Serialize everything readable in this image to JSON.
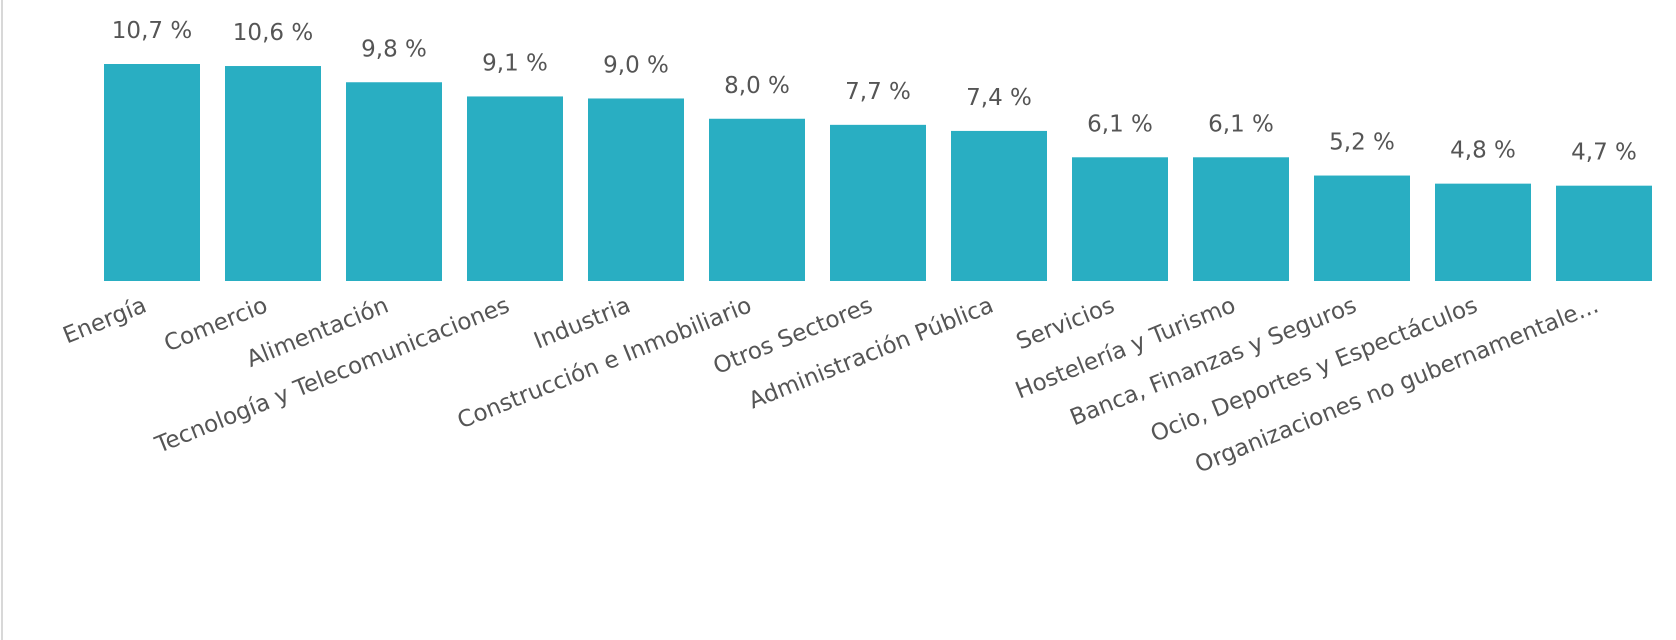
{
  "chart_data": {
    "type": "bar",
    "categories": [
      "Energía",
      "Comercio",
      "Alimentación",
      "Tecnología y Telecomunicaciones",
      "Industria",
      "Construcción e Inmobiliario",
      "Otros Sectores",
      "Administración Pública",
      "Servicios",
      "Hostelería y Turismo",
      "Banca, Finanzas y Seguros",
      "Ocio, Deportes y Espectáculos",
      "Organizaciones no gubernamentale..."
    ],
    "values": [
      10.7,
      10.6,
      9.8,
      9.1,
      9.0,
      8.0,
      7.7,
      7.4,
      6.1,
      6.1,
      5.2,
      4.8,
      4.7
    ],
    "value_labels": [
      "10,7 %",
      "10,6 %",
      "9,8 %",
      "9,1 %",
      "9,0 %",
      "8,0 %",
      "7,7 %",
      "7,4 %",
      "6,1 %",
      "6,1 %",
      "5,2 %",
      "4,8 %",
      "4,7 %"
    ],
    "color": "#29aec2"
  }
}
